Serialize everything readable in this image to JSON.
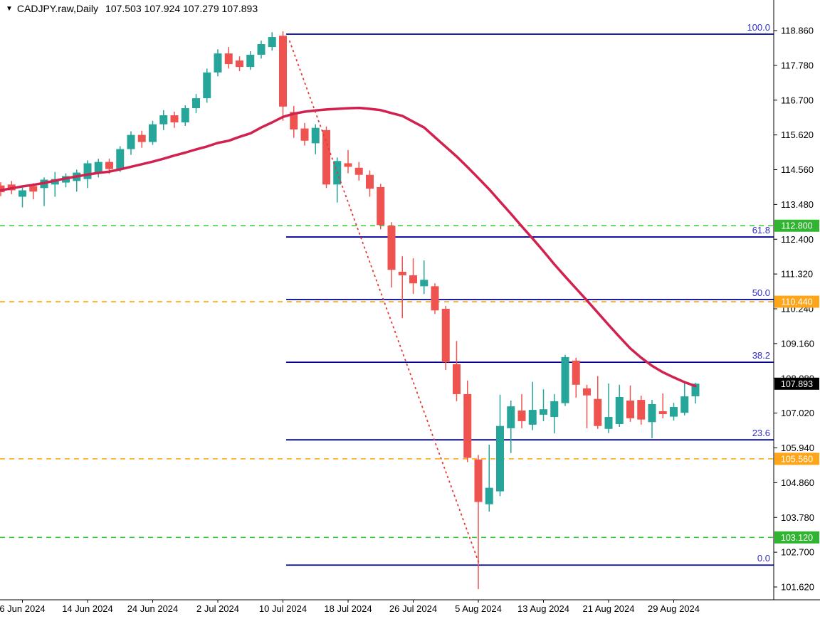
{
  "header": {
    "dropdown_icon": "▼",
    "symbol_period": "CADJPY.raw,Daily",
    "ohlc_values": "107.503 107.924 107.279 107.893"
  },
  "colors": {
    "background": "#ffffff",
    "bull_candle": "#26a69a",
    "bear_candle": "#ef5350",
    "ma_line": "#d0214f",
    "trend_line": "#e53935",
    "fib_line": "#00009c",
    "fib_label": "#2e2ec8",
    "green_level": "#33cc33",
    "green_badge": "#2fb52f",
    "orange_level": "#ffa500",
    "orange_badge": "#ffa519",
    "price_badge_bg": "#000000",
    "badge_text": "#ffffff",
    "axis_text": "#000000",
    "axis_line": "#000000"
  },
  "chart_data": {
    "type": "candlestick",
    "symbol": "CADJPY.raw",
    "timeframe": "Daily",
    "ohlc_display": {
      "open": "107.503",
      "high": "107.924",
      "low": "107.279",
      "close": "107.893"
    },
    "y_axis_ticks": [
      "118.860",
      "117.780",
      "116.700",
      "115.620",
      "114.560",
      "113.480",
      "112.400",
      "111.320",
      "110.240",
      "109.160",
      "108.080",
      "107.020",
      "105.940",
      "104.860",
      "103.780",
      "102.700",
      "101.620"
    ],
    "x_axis_labels": [
      {
        "text": "6 Jun 2024",
        "index": 2
      },
      {
        "text": "14 Jun 2024",
        "index": 8
      },
      {
        "text": "24 Jun 2024",
        "index": 14
      },
      {
        "text": "2 Jul 2024",
        "index": 20
      },
      {
        "text": "10 Jul 2024",
        "index": 26
      },
      {
        "text": "18 Jul 2024",
        "index": 32
      },
      {
        "text": "26 Jul 2024",
        "index": 38
      },
      {
        "text": "5 Aug 2024",
        "index": 44
      },
      {
        "text": "13 Aug 2024",
        "index": 50
      },
      {
        "text": "21 Aug 2024",
        "index": 56
      },
      {
        "text": "29 Aug 2024",
        "index": 62
      }
    ],
    "candle_columns": [
      "open",
      "high",
      "low",
      "close"
    ],
    "candles": [
      [
        114.05,
        114.15,
        113.72,
        113.84
      ],
      [
        114.08,
        114.19,
        113.78,
        113.9
      ],
      [
        113.7,
        113.98,
        113.37,
        113.9
      ],
      [
        114.03,
        114.12,
        113.62,
        113.86
      ],
      [
        113.97,
        114.3,
        113.41,
        114.23
      ],
      [
        114.08,
        114.47,
        113.7,
        114.25
      ],
      [
        114.14,
        114.43,
        113.99,
        114.34
      ],
      [
        114.19,
        114.54,
        113.86,
        114.45
      ],
      [
        114.25,
        114.83,
        113.97,
        114.74
      ],
      [
        114.45,
        114.88,
        114.3,
        114.78
      ],
      [
        114.78,
        114.88,
        114.41,
        114.56
      ],
      [
        114.56,
        115.27,
        114.47,
        115.18
      ],
      [
        115.18,
        115.73,
        115.0,
        115.62
      ],
      [
        115.62,
        115.75,
        115.22,
        115.4
      ],
      [
        115.4,
        116.06,
        115.31,
        115.95
      ],
      [
        115.95,
        116.39,
        115.77,
        116.23
      ],
      [
        116.23,
        116.34,
        115.84,
        116.01
      ],
      [
        116.01,
        116.54,
        115.9,
        116.45
      ],
      [
        116.45,
        116.89,
        116.3,
        116.76
      ],
      [
        116.76,
        117.68,
        116.62,
        117.56
      ],
      [
        117.56,
        118.28,
        117.44,
        118.15
      ],
      [
        118.15,
        118.35,
        117.68,
        117.82
      ],
      [
        117.93,
        118.06,
        117.6,
        117.73
      ],
      [
        117.73,
        118.22,
        117.64,
        118.11
      ],
      [
        118.11,
        118.55,
        117.99,
        118.44
      ],
      [
        118.35,
        118.81,
        118.24,
        118.66
      ],
      [
        118.7,
        118.84,
        116.06,
        116.5
      ],
      [
        116.33,
        116.52,
        115.53,
        115.79
      ],
      [
        115.82,
        115.99,
        115.29,
        115.44
      ],
      [
        115.36,
        115.95,
        115.02,
        115.84
      ],
      [
        115.77,
        115.88,
        113.97,
        114.08
      ],
      [
        114.08,
        114.92,
        113.52,
        114.81
      ],
      [
        114.74,
        115.15,
        114.43,
        114.63
      ],
      [
        114.6,
        114.78,
        114.2,
        114.38
      ],
      [
        114.38,
        114.52,
        113.7,
        113.95
      ],
      [
        114.0,
        114.1,
        112.69,
        112.82
      ],
      [
        112.8,
        112.91,
        110.88,
        111.43
      ],
      [
        111.37,
        111.85,
        109.93,
        111.26
      ],
      [
        111.26,
        111.79,
        110.68,
        111.01
      ],
      [
        110.92,
        111.72,
        110.68,
        111.12
      ],
      [
        110.92,
        111.01,
        110.06,
        110.17
      ],
      [
        110.22,
        110.31,
        108.32,
        108.56
      ],
      [
        108.5,
        109.22,
        107.35,
        107.57
      ],
      [
        107.57,
        107.99,
        105.46,
        105.59
      ],
      [
        105.54,
        105.68,
        101.51,
        104.22
      ],
      [
        104.15,
        106.0,
        103.92,
        104.66
      ],
      [
        104.55,
        107.55,
        104.4,
        106.58
      ],
      [
        106.51,
        107.37,
        105.74,
        107.19
      ],
      [
        107.06,
        107.57,
        106.51,
        106.73
      ],
      [
        106.62,
        107.95,
        106.45,
        107.08
      ],
      [
        106.93,
        107.72,
        106.73,
        107.1
      ],
      [
        106.86,
        107.57,
        106.35,
        107.35
      ],
      [
        107.29,
        108.79,
        107.2,
        108.72
      ],
      [
        108.61,
        108.7,
        107.46,
        107.86
      ],
      [
        107.75,
        107.86,
        106.51,
        107.53
      ],
      [
        107.42,
        108.13,
        106.49,
        106.58
      ],
      [
        106.49,
        107.9,
        106.36,
        106.86
      ],
      [
        106.64,
        107.86,
        106.55,
        107.48
      ],
      [
        107.37,
        107.84,
        106.71,
        106.82
      ],
      [
        107.39,
        107.52,
        106.62,
        106.78
      ],
      [
        106.7,
        107.39,
        106.2,
        107.26
      ],
      [
        107.04,
        107.59,
        106.82,
        106.95
      ],
      [
        106.87,
        107.3,
        106.75,
        107.17
      ],
      [
        106.99,
        107.94,
        106.91,
        107.5
      ],
      [
        107.503,
        107.924,
        107.279,
        107.893
      ]
    ],
    "moving_average": [
      113.9,
      113.96,
      114.02,
      114.07,
      114.13,
      114.2,
      114.27,
      114.33,
      114.39,
      114.44,
      114.48,
      114.55,
      114.63,
      114.71,
      114.79,
      114.88,
      114.98,
      115.07,
      115.17,
      115.26,
      115.37,
      115.44,
      115.56,
      115.67,
      115.85,
      116.01,
      116.18,
      116.28,
      116.34,
      116.38,
      116.41,
      116.43,
      116.45,
      116.46,
      116.43,
      116.39,
      116.3,
      116.21,
      116.03,
      115.85,
      115.55,
      115.25,
      114.95,
      114.62,
      114.28,
      113.93,
      113.55,
      113.17,
      112.78,
      112.4,
      112.01,
      111.6,
      111.22,
      110.85,
      110.48,
      110.1,
      109.72,
      109.35,
      108.99,
      108.7,
      108.45,
      108.25,
      108.09,
      107.94,
      107.82
    ],
    "fibonacci": {
      "start_index": 26.3,
      "levels": [
        {
          "label": "100.0",
          "price": 118.75
        },
        {
          "label": "61.8",
          "price": 112.45
        },
        {
          "label": "50.0",
          "price": 110.51
        },
        {
          "label": "38.2",
          "price": 108.56
        },
        {
          "label": "23.6",
          "price": 106.15
        },
        {
          "label": "0.0",
          "price": 102.26
        }
      ]
    },
    "horizontal_levels": [
      {
        "label": "112.800",
        "price": 112.8,
        "color_key": "green"
      },
      {
        "label": "110.440",
        "price": 110.44,
        "color_key": "orange"
      },
      {
        "label": "105.560",
        "price": 105.56,
        "color_key": "orange"
      },
      {
        "label": "103.120",
        "price": 103.12,
        "color_key": "green"
      }
    ],
    "current_price_marker": {
      "label": "107.893",
      "price": 107.893
    },
    "trendline": {
      "from_index": 26.6,
      "from_price": 118.55,
      "to_index": 44.1,
      "to_price": 102.28
    }
  }
}
